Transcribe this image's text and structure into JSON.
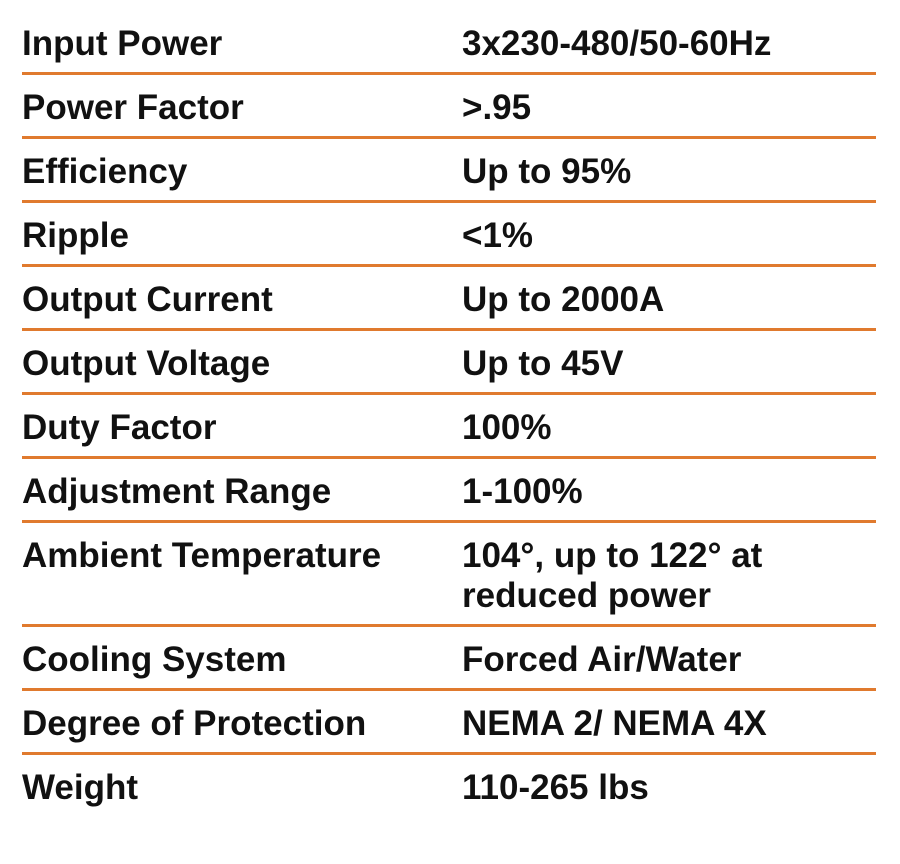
{
  "table": {
    "rows": [
      [
        "Input Power",
        "3x230-480/50-60Hz"
      ],
      [
        "Power Factor",
        ">.95"
      ],
      [
        "Efficiency",
        "Up to 95%"
      ],
      [
        "Ripple",
        "<1%"
      ],
      [
        "Output Current",
        "Up to 2000A"
      ],
      [
        "Output Voltage",
        "Up to 45V"
      ],
      [
        "Duty Factor",
        "100%"
      ],
      [
        "Adjustment Range",
        "1-100%"
      ],
      [
        "Ambient Temperature",
        "104°, up to 122° at reduced power"
      ],
      [
        "Cooling System",
        "Forced Air/Water"
      ],
      [
        "Degree of Protection",
        "NEMA 2/ NEMA 4X"
      ],
      [
        "Weight",
        "110-265 lbs"
      ]
    ]
  }
}
